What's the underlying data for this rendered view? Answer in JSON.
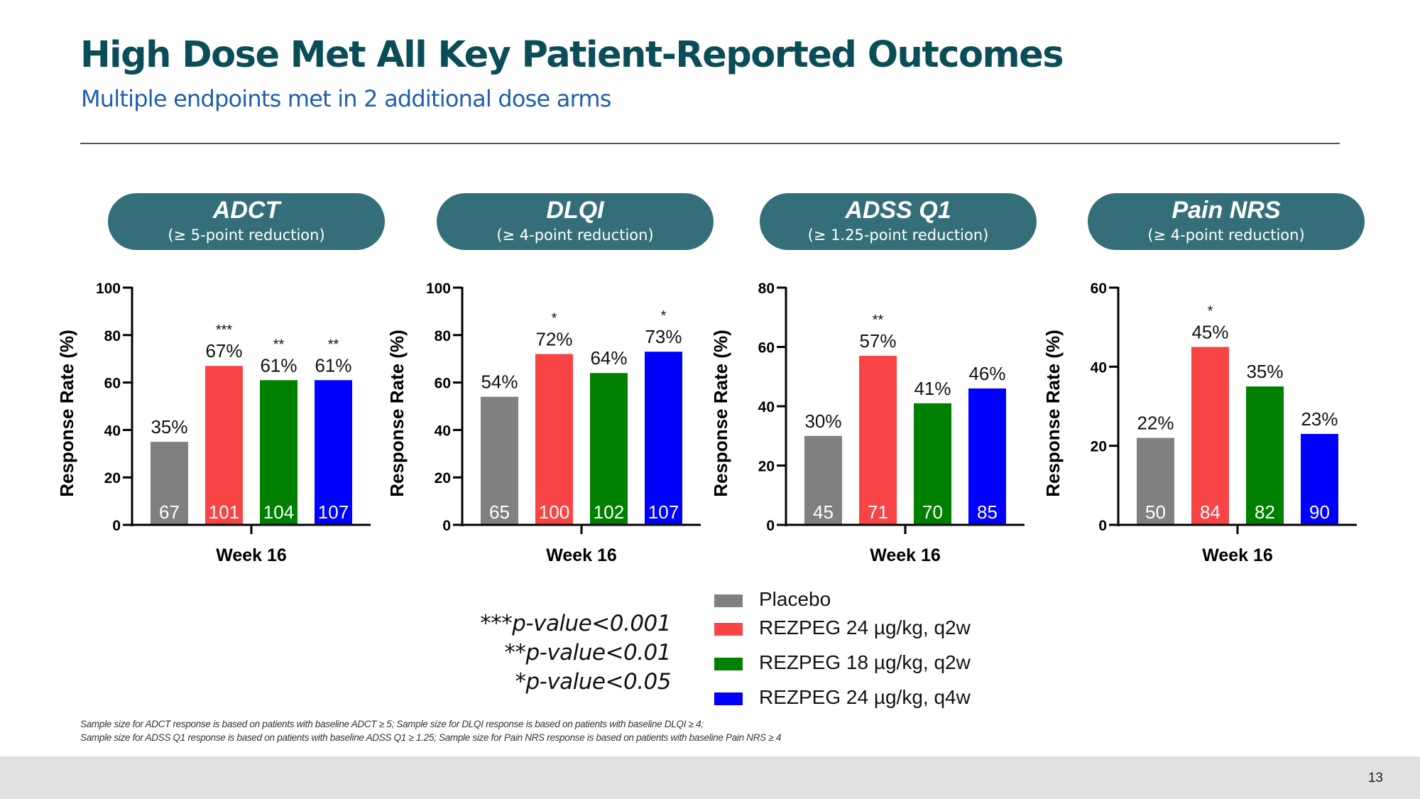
{
  "slide": {
    "title": "High Dose Met All Key Patient-Reported Outcomes",
    "subtitle": "Multiple endpoints met in 2 additional dose arms",
    "page_number": "13"
  },
  "panels": [
    {
      "name": "ADCT",
      "criterion": "(≥ 5-point reduction)"
    },
    {
      "name": "DLQI",
      "criterion": "(≥ 4-point reduction)"
    },
    {
      "name": "ADSS Q1",
      "criterion": "(≥ 1.25-point reduction)"
    },
    {
      "name": "Pain NRS",
      "criterion": "(≥ 4-point reduction)"
    }
  ],
  "pvalue_key": [
    "***p-value<0.001",
    "**p-value<0.01",
    "*p-value<0.05"
  ],
  "legend": [
    {
      "label": "Placebo",
      "color": "#808080"
    },
    {
      "label": "REZPEG 24 µg/kg, q2w",
      "color": "#f84444"
    },
    {
      "label": "REZPEG 18 µg/kg, q2w",
      "color": "#008000"
    },
    {
      "label": "REZPEG 24 µg/kg, q4w",
      "color": "#0000ff"
    }
  ],
  "footnotes": [
    "Sample size for ADCT response is based on patients with baseline ADCT ≥ 5; Sample size for DLQI response is based on patients with baseline DLQI ≥ 4;",
    "Sample size for ADSS Q1 response is based on patients with baseline ADSS Q1 ≥ 1.25; Sample size for Pain NRS response is based on patients with baseline Pain NRS ≥ 4"
  ],
  "chart_data": [
    {
      "type": "bar",
      "title": "ADCT",
      "subtitle": "(≥ 5-point reduction)",
      "xlabel": "Week 16",
      "ylabel": "Response Rate (%)",
      "categories": [
        "Week 16"
      ],
      "ylim": [
        0,
        100
      ],
      "yticks": [
        0,
        20,
        40,
        60,
        80,
        100
      ],
      "grid": false,
      "series": [
        {
          "name": "Placebo",
          "value": 35,
          "label": "35%",
          "n": "67",
          "sig": "",
          "color": "#808080"
        },
        {
          "name": "REZPEG 24 µg/kg, q2w",
          "value": 67,
          "label": "67%",
          "n": "101",
          "sig": "***",
          "color": "#f84444"
        },
        {
          "name": "REZPEG 18 µg/kg, q2w",
          "value": 61,
          "label": "61%",
          "n": "104",
          "sig": "**",
          "color": "#008000"
        },
        {
          "name": "REZPEG 24 µg/kg, q4w",
          "value": 61,
          "label": "61%",
          "n": "107",
          "sig": "**",
          "color": "#0000ff"
        }
      ]
    },
    {
      "type": "bar",
      "title": "DLQI",
      "subtitle": "(≥ 4-point reduction)",
      "xlabel": "Week 16",
      "ylabel": "Response Rate (%)",
      "categories": [
        "Week 16"
      ],
      "ylim": [
        0,
        100
      ],
      "yticks": [
        0,
        20,
        40,
        60,
        80,
        100
      ],
      "grid": false,
      "series": [
        {
          "name": "Placebo",
          "value": 54,
          "label": "54%",
          "n": "65",
          "sig": "",
          "color": "#808080"
        },
        {
          "name": "REZPEG 24 µg/kg, q2w",
          "value": 72,
          "label": "72%",
          "n": "100",
          "sig": "*",
          "color": "#f84444"
        },
        {
          "name": "REZPEG 18 µg/kg, q2w",
          "value": 64,
          "label": "64%",
          "n": "102",
          "sig": "",
          "color": "#008000"
        },
        {
          "name": "REZPEG 24 µg/kg, q4w",
          "value": 73,
          "label": "73%",
          "n": "107",
          "sig": "*",
          "color": "#0000ff"
        }
      ]
    },
    {
      "type": "bar",
      "title": "ADSS Q1",
      "subtitle": "(≥ 1.25-point reduction)",
      "xlabel": "Week 16",
      "ylabel": "Response Rate (%)",
      "categories": [
        "Week 16"
      ],
      "ylim": [
        0,
        80
      ],
      "yticks": [
        0,
        20,
        40,
        60,
        80
      ],
      "grid": false,
      "series": [
        {
          "name": "Placebo",
          "value": 30,
          "label": "30%",
          "n": "45",
          "sig": "",
          "color": "#808080"
        },
        {
          "name": "REZPEG 24 µg/kg, q2w",
          "value": 57,
          "label": "57%",
          "n": "71",
          "sig": "**",
          "color": "#f84444"
        },
        {
          "name": "REZPEG 18 µg/kg, q2w",
          "value": 41,
          "label": "41%",
          "n": "70",
          "sig": "",
          "color": "#008000"
        },
        {
          "name": "REZPEG 24 µg/kg, q4w",
          "value": 46,
          "label": "46%",
          "n": "85",
          "sig": "",
          "color": "#0000ff"
        }
      ]
    },
    {
      "type": "bar",
      "title": "Pain NRS",
      "subtitle": "(≥ 4-point reduction)",
      "xlabel": "Week 16",
      "ylabel": "Response Rate (%)",
      "categories": [
        "Week 16"
      ],
      "ylim": [
        0,
        60
      ],
      "yticks": [
        0,
        20,
        40,
        60
      ],
      "grid": false,
      "series": [
        {
          "name": "Placebo",
          "value": 22,
          "label": "22%",
          "n": "50",
          "sig": "",
          "color": "#808080"
        },
        {
          "name": "REZPEG 24 µg/kg, q2w",
          "value": 45,
          "label": "45%",
          "n": "84",
          "sig": "*",
          "color": "#f84444"
        },
        {
          "name": "REZPEG 18 µg/kg, q2w",
          "value": 35,
          "label": "35%",
          "n": "82",
          "sig": "",
          "color": "#008000"
        },
        {
          "name": "REZPEG 24 µg/kg, q4w",
          "value": 23,
          "label": "23%",
          "n": "90",
          "sig": "",
          "color": "#0000ff"
        }
      ]
    }
  ]
}
